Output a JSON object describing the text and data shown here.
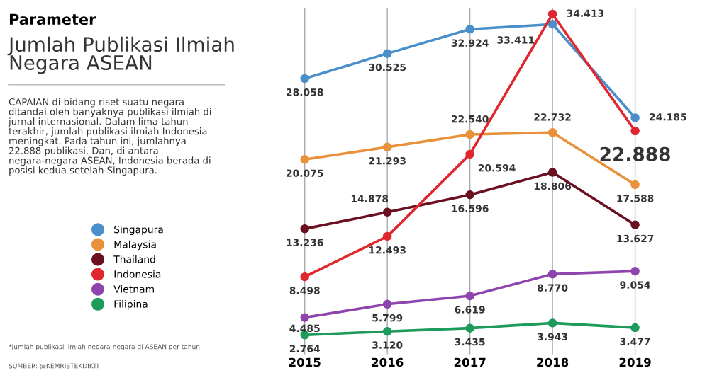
{
  "chart_data": {
    "type": "line",
    "title": "Jumlah Publikasi Ilmiah Negara ASEAN",
    "categories": [
      "2015",
      "2016",
      "2017",
      "2018",
      "2019"
    ],
    "series": [
      {
        "name": "Singapura",
        "color": "#4a8fc9",
        "values": [
          28058,
          30525,
          32924,
          33411,
          24185
        ],
        "value_labels": [
          "28.058",
          "30.525",
          "32.924",
          "33.411",
          "24.185"
        ]
      },
      {
        "name": "Malaysia",
        "color": "#e8913a",
        "values": [
          20075,
          21293,
          22540,
          22732,
          17588
        ],
        "value_labels": [
          "20.075",
          "21.293",
          "22.540",
          "22.732",
          "17.588"
        ]
      },
      {
        "name": "Thailand",
        "color": "#6a1020",
        "values": [
          13236,
          14878,
          16596,
          18806,
          13627
        ],
        "value_labels": [
          "13.236",
          "14.878",
          "16.596",
          "18.806",
          "13.627"
        ]
      },
      {
        "name": "Indonesia",
        "color": "#e0262e",
        "values": [
          8498,
          12493,
          20594,
          34413,
          22888
        ],
        "value_labels": [
          "8.498",
          "12.493",
          "20.594",
          "34.413",
          "22.888"
        ]
      },
      {
        "name": "Vietnam",
        "color": "#8e44ad",
        "values": [
          4485,
          5799,
          6619,
          8770,
          9054
        ],
        "value_labels": [
          "4.485",
          "5.799",
          "6.619",
          "8.770",
          "9.054"
        ]
      },
      {
        "name": "Filipina",
        "color": "#1e9a5a",
        "values": [
          2764,
          3120,
          3435,
          3943,
          3477
        ],
        "value_labels": [
          "2.764",
          "3.120",
          "3.435",
          "3.943",
          "3.477"
        ]
      }
    ],
    "grid": "x",
    "legend": "left",
    "marker": "circle",
    "line_style": "solid",
    "annotations": [
      "Parameter",
      "CAPAIAN di bidang riset suatu negara ditandai oleh banyaknya publikasi ilmiah di jurnal internasional. Dalam lima tahun terakhir, jumlah publikasi ilmiah Indonesia meningkat. Pada tahun ini, jumlahnya 22.888 publikasi. Dan, di antara negara-negara ASEAN, Indonesia berada di posisi kedua setelah Singapura.",
      "*Jumlah publikasi ilmiah negara-negara di ASEAN per tahun",
      "SUMBER: @KEMRISTEKDIKTI"
    ]
  }
}
